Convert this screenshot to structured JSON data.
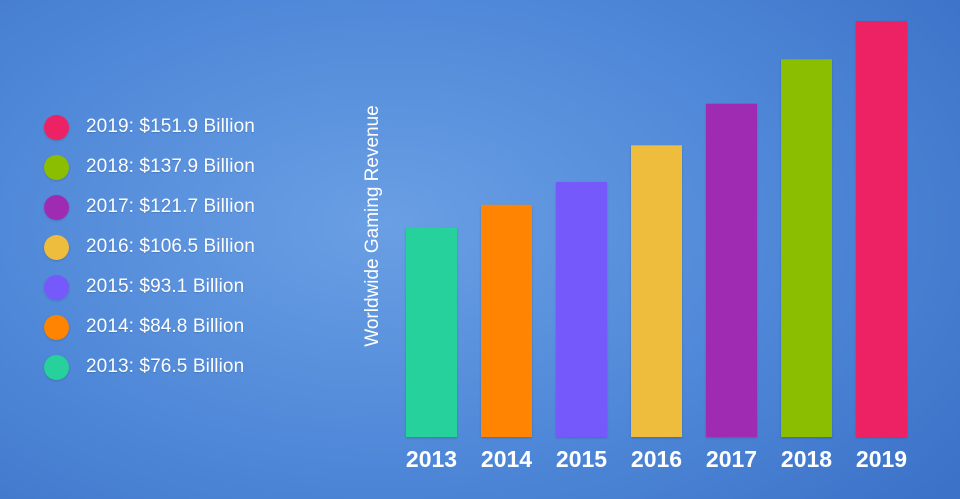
{
  "chart_data": {
    "type": "bar",
    "title": "",
    "xlabel": "",
    "ylabel": "Worldwide Gaming Revenue",
    "categories": [
      "2013",
      "2014",
      "2015",
      "2016",
      "2017",
      "2018",
      "2019"
    ],
    "values": [
      76.5,
      84.8,
      93.1,
      106.5,
      121.7,
      137.9,
      151.9
    ],
    "unit": "Billion",
    "colors": [
      "#26d19b",
      "#fe8401",
      "#7659fb",
      "#eebd3d",
      "#9f2bb3",
      "#8bbe00",
      "#ec2265"
    ],
    "ylim": [
      0,
      151.9
    ],
    "grid": false,
    "legend_position": "left"
  },
  "legend": {
    "items": [
      {
        "label": "2019: $151.9 Billion",
        "color": "#ec2265"
      },
      {
        "label": "2018: $137.9 Billion",
        "color": "#8bbe00"
      },
      {
        "label": "2017: $121.7 Billion",
        "color": "#9f2bb3"
      },
      {
        "label": "2016: $106.5 Billion",
        "color": "#eebd3d"
      },
      {
        "label": "2015: $93.1 Billion",
        "color": "#7659fb"
      },
      {
        "label": "2014: $84.8 Billion",
        "color": "#fe8401"
      },
      {
        "label": "2013: $76.5 Billion",
        "color": "#26d19b"
      }
    ]
  }
}
